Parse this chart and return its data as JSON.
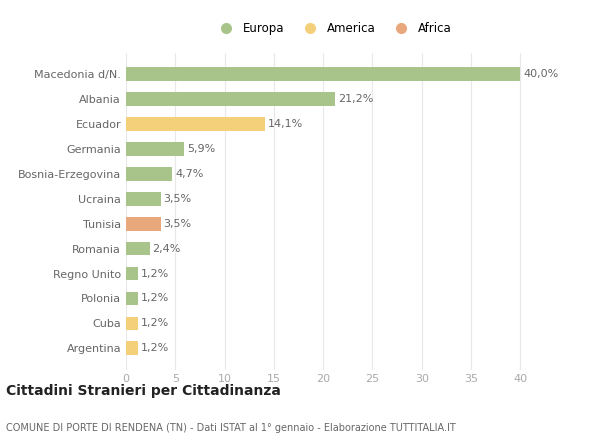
{
  "categories": [
    "Macedonia d/N.",
    "Albania",
    "Ecuador",
    "Germania",
    "Bosnia-Erzegovina",
    "Ucraina",
    "Tunisia",
    "Romania",
    "Regno Unito",
    "Polonia",
    "Cuba",
    "Argentina"
  ],
  "values": [
    40.0,
    21.2,
    14.1,
    5.9,
    4.7,
    3.5,
    3.5,
    2.4,
    1.2,
    1.2,
    1.2,
    1.2
  ],
  "labels": [
    "40,0%",
    "21,2%",
    "14,1%",
    "5,9%",
    "4,7%",
    "3,5%",
    "3,5%",
    "2,4%",
    "1,2%",
    "1,2%",
    "1,2%",
    "1,2%"
  ],
  "colors": [
    "#a8c48a",
    "#a8c48a",
    "#f5d07a",
    "#a8c48a",
    "#a8c48a",
    "#a8c48a",
    "#e8a87c",
    "#a8c48a",
    "#a8c48a",
    "#a8c48a",
    "#f5d07a",
    "#f5d07a"
  ],
  "legend": [
    {
      "label": "Europa",
      "color": "#a8c48a"
    },
    {
      "label": "America",
      "color": "#f5d07a"
    },
    {
      "label": "Africa",
      "color": "#e8a87c"
    }
  ],
  "xlim": [
    0,
    42
  ],
  "xticks": [
    0,
    5,
    10,
    15,
    20,
    25,
    30,
    35,
    40
  ],
  "title": "Cittadini Stranieri per Cittadinanza",
  "subtitle": "COMUNE DI PORTE DI RENDENA (TN) - Dati ISTAT al 1° gennaio - Elaborazione TUTTITALIA.IT",
  "background_color": "#ffffff",
  "grid_color": "#e8e8e8",
  "label_fontsize": 8,
  "tick_fontsize": 8,
  "title_fontsize": 10,
  "subtitle_fontsize": 7
}
